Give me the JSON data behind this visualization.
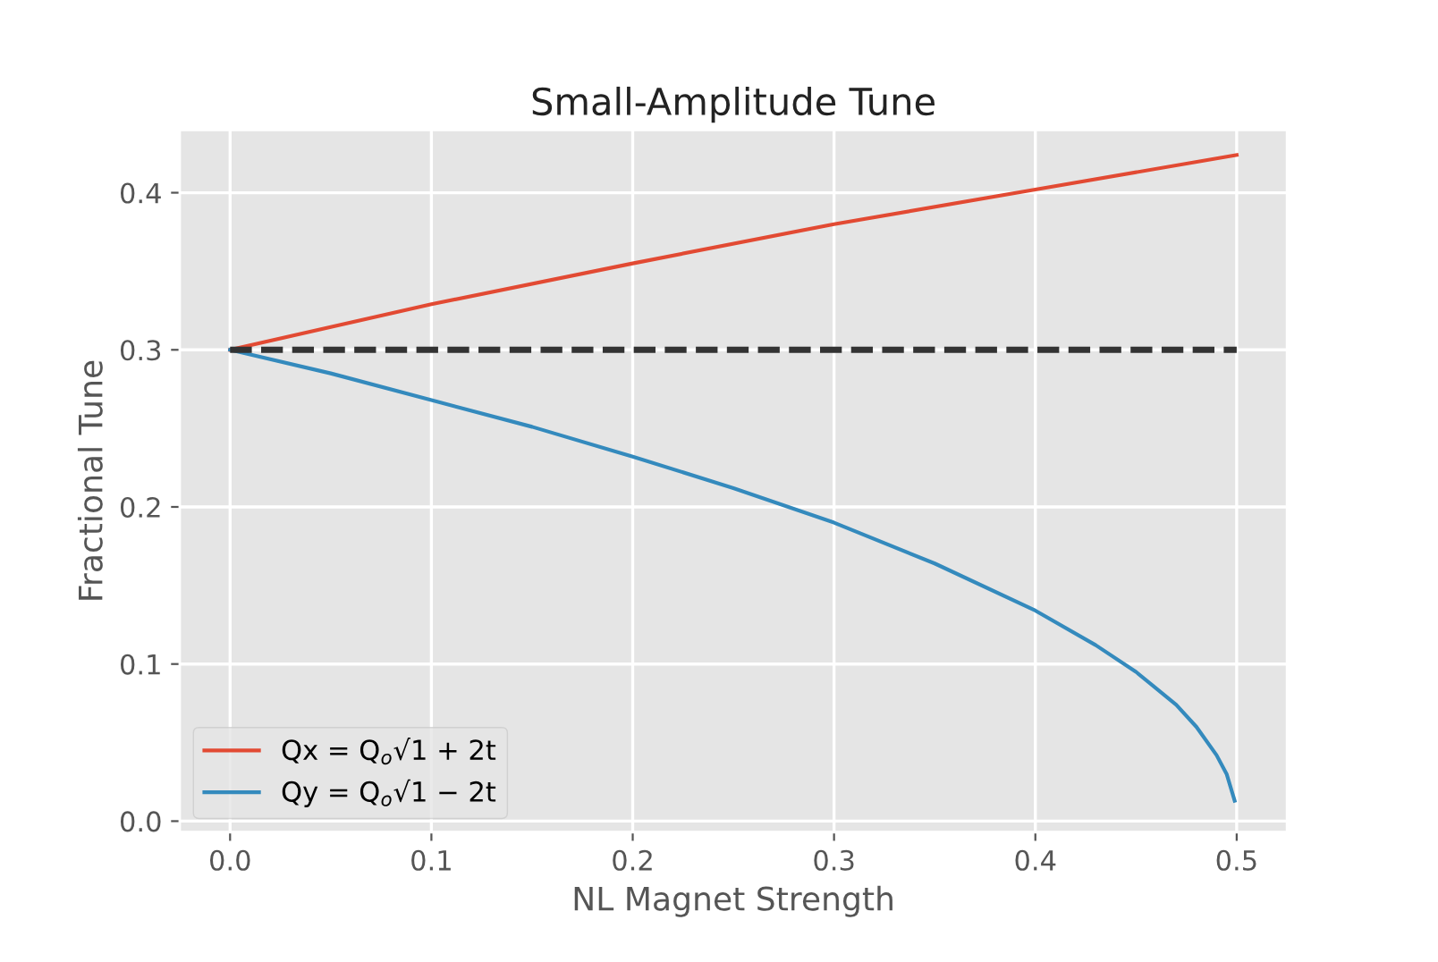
{
  "chart_data": {
    "type": "line",
    "title": "Small-Amplitude Tune",
    "xlabel": "NL Magnet Strength",
    "ylabel": "Fractional Tune",
    "series": [
      {
        "name": "Qx = Q$_{o}$√1 + 2t",
        "color": "#e24a33",
        "x": [
          0,
          0.1,
          0.2,
          0.3,
          0.4,
          0.5
        ],
        "values": [
          0.3,
          0.329,
          0.355,
          0.38,
          0.402,
          0.424
        ]
      },
      {
        "name": "Qy = Q$_{o}$√1 − 2t",
        "color": "#348abd",
        "x": [
          0,
          0.05,
          0.1,
          0.15,
          0.2,
          0.25,
          0.3,
          0.35,
          0.4,
          0.43,
          0.45,
          0.47,
          0.48,
          0.49,
          0.495,
          0.499
        ],
        "values": [
          0.3,
          0.285,
          0.268,
          0.251,
          0.232,
          0.212,
          0.19,
          0.164,
          0.134,
          0.112,
          0.095,
          0.074,
          0.06,
          0.042,
          0.03,
          0.013
        ]
      },
      {
        "color": "#333333",
        "line_style": "dashed",
        "x": [
          0,
          0.5
        ],
        "values": [
          0.3,
          0.3
        ]
      }
    ],
    "xlim": [
      -0.025,
      0.525
    ],
    "ylim": [
      -0.007,
      0.44
    ],
    "xticks": [
      {
        "value": 0,
        "label": "0.0"
      },
      0.1,
      0.2,
      0.3,
      0.4,
      0.5
    ],
    "yticks": [
      {
        "value": 0,
        "label": "0.0"
      },
      0.1,
      0.2,
      0.3,
      0.4
    ],
    "grid": true,
    "legend": "bottom left",
    "line_style": "solid",
    "marker": "none"
  }
}
